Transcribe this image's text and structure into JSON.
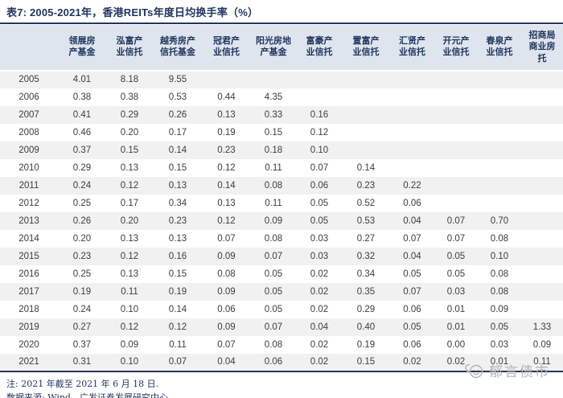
{
  "title": "表7:  2005-2021年，香港REITs年度日均换手率（%）",
  "colors": {
    "accent_navy": "#24365f",
    "title_text": "#20365e",
    "header_bg": "#dfe5ee",
    "header_text": "#20365e",
    "row_stripe": "#f1f1f1",
    "data_text": "#3d3d3d",
    "watermark_gray": "#b3b3b3"
  },
  "icons": {
    "watermark_icon": "chat-face-icon"
  },
  "chart_data": {
    "type": "table",
    "title": "表7:  2005-2021年，香港REITs年度日均换手率（%）",
    "year_column_header": "",
    "columns": [
      "领展房\n产基金",
      "泓富产\n业信托",
      "越秀房产\n信托基金",
      "冠君产\n业信托",
      "阳光房地\n产基金",
      "富豪产\n业信托",
      "置富产\n业信托",
      "汇贤产\n业信托",
      "开元产\n业信托",
      "春泉产\n业信托",
      "招商局\n商业房\n托"
    ],
    "rows": [
      {
        "year": "2005",
        "values": [
          "4.01",
          "8.18",
          "9.55",
          "",
          "",
          "",
          "",
          "",
          "",
          "",
          ""
        ]
      },
      {
        "year": "2006",
        "values": [
          "0.38",
          "0.38",
          "0.53",
          "0.44",
          "4.35",
          "",
          "",
          "",
          "",
          "",
          ""
        ]
      },
      {
        "year": "2007",
        "values": [
          "0.41",
          "0.29",
          "0.26",
          "0.13",
          "0.33",
          "0.16",
          "",
          "",
          "",
          "",
          ""
        ]
      },
      {
        "year": "2008",
        "values": [
          "0.46",
          "0.20",
          "0.17",
          "0.19",
          "0.15",
          "0.12",
          "",
          "",
          "",
          "",
          ""
        ]
      },
      {
        "year": "2009",
        "values": [
          "0.37",
          "0.15",
          "0.14",
          "0.23",
          "0.18",
          "0.10",
          "",
          "",
          "",
          "",
          ""
        ]
      },
      {
        "year": "2010",
        "values": [
          "0.29",
          "0.13",
          "0.15",
          "0.12",
          "0.11",
          "0.07",
          "0.14",
          "",
          "",
          "",
          ""
        ]
      },
      {
        "year": "2011",
        "values": [
          "0.24",
          "0.12",
          "0.13",
          "0.14",
          "0.08",
          "0.06",
          "0.23",
          "0.22",
          "",
          "",
          ""
        ]
      },
      {
        "year": "2012",
        "values": [
          "0.25",
          "0.17",
          "0.34",
          "0.13",
          "0.11",
          "0.05",
          "0.52",
          "0.06",
          "",
          "",
          ""
        ]
      },
      {
        "year": "2013",
        "values": [
          "0.26",
          "0.20",
          "0.23",
          "0.12",
          "0.09",
          "0.05",
          "0.53",
          "0.04",
          "0.07",
          "0.70",
          ""
        ]
      },
      {
        "year": "2014",
        "values": [
          "0.20",
          "0.13",
          "0.13",
          "0.07",
          "0.08",
          "0.03",
          "0.27",
          "0.07",
          "0.07",
          "0.08",
          ""
        ]
      },
      {
        "year": "2015",
        "values": [
          "0.23",
          "0.12",
          "0.16",
          "0.09",
          "0.07",
          "0.03",
          "0.32",
          "0.04",
          "0.05",
          "0.10",
          ""
        ]
      },
      {
        "year": "2016",
        "values": [
          "0.25",
          "0.13",
          "0.15",
          "0.08",
          "0.05",
          "0.02",
          "0.34",
          "0.05",
          "0.05",
          "0.08",
          ""
        ]
      },
      {
        "year": "2017",
        "values": [
          "0.19",
          "0.11",
          "0.19",
          "0.09",
          "0.05",
          "0.02",
          "0.35",
          "0.07",
          "0.03",
          "0.08",
          ""
        ]
      },
      {
        "year": "2018",
        "values": [
          "0.24",
          "0.10",
          "0.14",
          "0.06",
          "0.05",
          "0.02",
          "0.29",
          "0.06",
          "0.01",
          "0.09",
          ""
        ]
      },
      {
        "year": "2019",
        "values": [
          "0.27",
          "0.12",
          "0.12",
          "0.09",
          "0.07",
          "0.04",
          "0.40",
          "0.05",
          "0.01",
          "0.05",
          "1.33"
        ]
      },
      {
        "year": "2020",
        "values": [
          "0.37",
          "0.09",
          "0.11",
          "0.07",
          "0.08",
          "0.02",
          "0.19",
          "0.06",
          "0.00",
          "0.03",
          "0.09"
        ]
      },
      {
        "year": "2021",
        "values": [
          "0.31",
          "0.10",
          "0.07",
          "0.04",
          "0.06",
          "0.02",
          "0.15",
          "0.02",
          "0.02",
          "0.01",
          "0.11"
        ]
      }
    ]
  },
  "notes": {
    "note1": "注:  2021 年截至 2021 年 6 月 18 日.",
    "note2": "数据来源:  Wind，广发证券发展研究中心"
  },
  "watermark": {
    "text": "郁言债市"
  }
}
